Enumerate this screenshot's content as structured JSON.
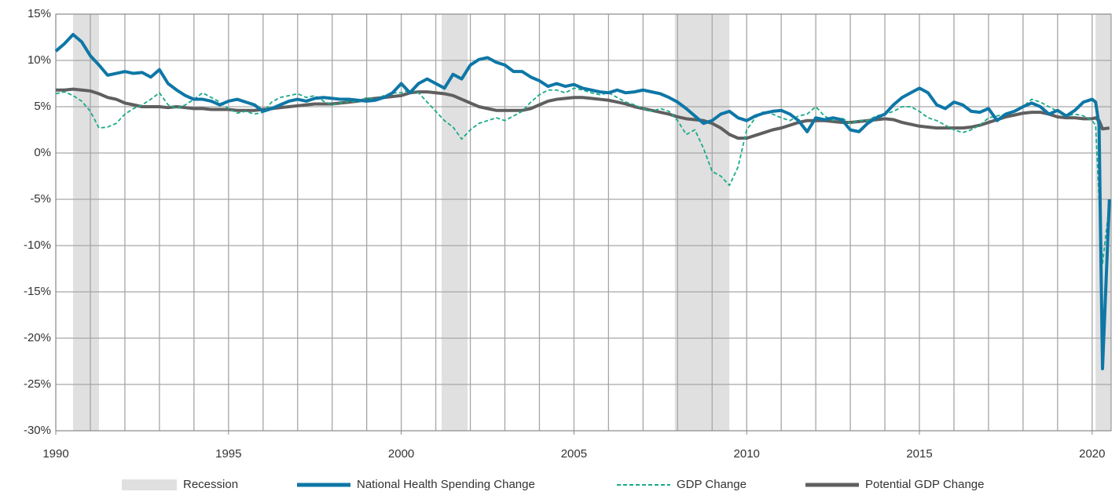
{
  "chart_data": {
    "type": "line",
    "xlim": [
      1990,
      2020.55
    ],
    "xticks": [
      1990,
      1995,
      2000,
      2005,
      2010,
      2015,
      2020
    ],
    "xgrid": [
      1990,
      1991,
      1992,
      1993,
      1994,
      1995,
      1996,
      1997,
      1998,
      1999,
      2000,
      2001,
      2002,
      2003,
      2004,
      2005,
      2006,
      2007,
      2008,
      2009,
      2010,
      2011,
      2012,
      2013,
      2014,
      2015,
      2016,
      2017,
      2018,
      2019,
      2020
    ],
    "ylim": [
      -30,
      15
    ],
    "yticks": [
      {
        "value": 15,
        "label": "15%"
      },
      {
        "value": 10,
        "label": "10%"
      },
      {
        "value": 5,
        "label": "5%"
      },
      {
        "value": 0,
        "label": "0%"
      },
      {
        "value": -5,
        "label": "-5%"
      },
      {
        "value": -10,
        "label": "-10%"
      },
      {
        "value": -15,
        "label": "-15%"
      },
      {
        "value": -20,
        "label": "-20%"
      },
      {
        "value": -25,
        "label": "-25%"
      },
      {
        "value": -30,
        "label": "-30%"
      }
    ],
    "grid": true,
    "legend": "bottom",
    "recessions": {
      "name": "Recession",
      "color": "#e0e0e0",
      "bands": [
        [
          1990.5,
          1991.25
        ],
        [
          2001.17,
          2001.92
        ],
        [
          2007.92,
          2009.5
        ],
        [
          2020.1,
          2020.55
        ]
      ]
    },
    "x": [
      1990,
      1990.25,
      1990.5,
      1990.75,
      1991,
      1991.25,
      1991.5,
      1991.75,
      1992,
      1992.25,
      1992.5,
      1992.75,
      1993,
      1993.25,
      1993.5,
      1993.75,
      1994,
      1994.25,
      1994.5,
      1994.75,
      1995,
      1995.25,
      1995.5,
      1995.75,
      1996,
      1996.25,
      1996.5,
      1996.75,
      1997,
      1997.25,
      1997.5,
      1997.75,
      1998,
      1998.25,
      1998.5,
      1998.75,
      1999,
      1999.25,
      1999.5,
      1999.75,
      2000,
      2000.25,
      2000.5,
      2000.75,
      2001,
      2001.25,
      2001.5,
      2001.75,
      2002,
      2002.25,
      2002.5,
      2002.75,
      2003,
      2003.25,
      2003.5,
      2003.75,
      2004,
      2004.25,
      2004.5,
      2004.75,
      2005,
      2005.25,
      2005.5,
      2005.75,
      2006,
      2006.25,
      2006.5,
      2006.75,
      2007,
      2007.25,
      2007.5,
      2007.75,
      2008,
      2008.25,
      2008.5,
      2008.75,
      2009,
      2009.25,
      2009.5,
      2009.75,
      2010,
      2010.25,
      2010.5,
      2010.75,
      2011,
      2011.25,
      2011.5,
      2011.75,
      2012,
      2012.25,
      2012.5,
      2012.75,
      2013,
      2013.25,
      2013.5,
      2013.75,
      2014,
      2014.25,
      2014.5,
      2014.75,
      2015,
      2015.25,
      2015.5,
      2015.75,
      2016,
      2016.25,
      2016.5,
      2016.75,
      2017,
      2017.25,
      2017.5,
      2017.75,
      2018,
      2018.25,
      2018.5,
      2018.75,
      2019,
      2019.25,
      2019.5,
      2019.75,
      2020,
      2020.1,
      2020.2,
      2020.3,
      2020.5
    ],
    "series": [
      {
        "name": "National Health Spending Change",
        "color": "#0e77a6",
        "style": "solid",
        "values": [
          11,
          11.8,
          12.8,
          12,
          10.5,
          9.5,
          8.4,
          8.6,
          8.8,
          8.6,
          8.7,
          8.2,
          9,
          7.5,
          6.8,
          6.2,
          5.8,
          5.8,
          5.6,
          5.2,
          5.6,
          5.8,
          5.5,
          5.2,
          4.5,
          4.8,
          5.2,
          5.6,
          5.8,
          5.6,
          5.9,
          6,
          5.9,
          5.8,
          5.8,
          5.7,
          5.6,
          5.7,
          6,
          6.5,
          7.5,
          6.5,
          7.5,
          8,
          7.5,
          7,
          8.5,
          8,
          9.5,
          10.1,
          10.3,
          9.8,
          9.5,
          8.8,
          8.8,
          8.2,
          7.8,
          7.2,
          7.5,
          7.2,
          7.4,
          7,
          6.8,
          6.6,
          6.5,
          6.8,
          6.5,
          6.6,
          6.8,
          6.6,
          6.4,
          6,
          5.5,
          4.8,
          4,
          3.2,
          3.5,
          4.2,
          4.5,
          3.8,
          3.5,
          4,
          4.3,
          4.5,
          4.6,
          4.2,
          3.5,
          2.3,
          3.8,
          3.6,
          3.8,
          3.6,
          2.5,
          2.3,
          3.2,
          3.8,
          4.2,
          5.2,
          6,
          6.5,
          7,
          6.5,
          5.2,
          4.8,
          5.5,
          5.2,
          4.5,
          4.4,
          4.8,
          3.5,
          4.2,
          4.5,
          5,
          5.4,
          5,
          4.2,
          4.6,
          4,
          4.6,
          5.5,
          5.8,
          5.5,
          3,
          -23.3,
          -5
        ]
      },
      {
        "name": "GDP Change",
        "color": "#1aaa8a",
        "style": "dashed",
        "values": [
          6.4,
          6.6,
          6.2,
          5.6,
          4.5,
          2.7,
          2.8,
          3.2,
          4.2,
          4.8,
          5.2,
          5.8,
          6.5,
          5.2,
          4.8,
          5.2,
          5.8,
          6.5,
          6,
          5.5,
          4.8,
          4.3,
          4.5,
          4.2,
          4.4,
          5.5,
          6,
          6.2,
          6.4,
          6,
          6.2,
          5.6,
          5.2,
          5.4,
          5.6,
          5.5,
          6,
          5.8,
          6.2,
          6.5,
          6.5,
          6.8,
          6.5,
          5.5,
          4.5,
          3.5,
          2.8,
          1.5,
          2.5,
          3.2,
          3.5,
          3.8,
          3.5,
          4,
          4.5,
          5.5,
          6.3,
          6.8,
          6.8,
          6.5,
          7,
          6.8,
          6.5,
          6.3,
          6.5,
          6,
          5.5,
          5.2,
          4.8,
          4.5,
          4.8,
          4.5,
          3.5,
          2,
          2.5,
          0.5,
          -2,
          -2.5,
          -3.5,
          -1.5,
          2.5,
          3.8,
          4.5,
          4.2,
          3.8,
          3.5,
          4,
          4.2,
          5,
          4,
          3.5,
          3.8,
          3.2,
          3.5,
          3.5,
          4,
          4.2,
          4.5,
          5,
          5,
          4.5,
          3.8,
          3.5,
          3,
          2.5,
          2.2,
          2.5,
          3,
          3.8,
          4,
          4.2,
          4.5,
          5,
          5.8,
          5.5,
          5,
          4.5,
          4,
          4.2,
          4,
          3.5,
          3,
          -5,
          -12,
          -5.5
        ]
      },
      {
        "name": "Potential GDP Change",
        "color": "#5f5f5f",
        "style": "solid",
        "values": [
          6.8,
          6.8,
          6.9,
          6.8,
          6.7,
          6.4,
          6,
          5.8,
          5.4,
          5.2,
          5,
          5,
          5,
          4.9,
          5,
          4.9,
          4.8,
          4.8,
          4.7,
          4.7,
          4.7,
          4.6,
          4.6,
          4.6,
          4.7,
          4.8,
          4.9,
          5,
          5.1,
          5.2,
          5.3,
          5.3,
          5.3,
          5.4,
          5.5,
          5.6,
          5.8,
          5.9,
          6,
          6.1,
          6.2,
          6.5,
          6.6,
          6.6,
          6.5,
          6.4,
          6.2,
          5.8,
          5.4,
          5,
          4.8,
          4.6,
          4.6,
          4.6,
          4.6,
          4.8,
          5.2,
          5.6,
          5.8,
          5.9,
          6,
          6,
          5.9,
          5.8,
          5.7,
          5.5,
          5.3,
          5,
          4.8,
          4.6,
          4.4,
          4.2,
          3.9,
          3.7,
          3.6,
          3.5,
          3.2,
          2.7,
          2,
          1.6,
          1.6,
          1.9,
          2.2,
          2.5,
          2.7,
          3,
          3.3,
          3.5,
          3.5,
          3.5,
          3.4,
          3.3,
          3.3,
          3.4,
          3.5,
          3.6,
          3.7,
          3.6,
          3.3,
          3.1,
          2.9,
          2.8,
          2.7,
          2.7,
          2.7,
          2.7,
          2.8,
          3,
          3.3,
          3.6,
          3.9,
          4.1,
          4.3,
          4.4,
          4.4,
          4.2,
          3.9,
          3.8,
          3.8,
          3.7,
          3.7,
          3.8,
          3.5,
          2.6,
          2.7
        ]
      }
    ]
  }
}
